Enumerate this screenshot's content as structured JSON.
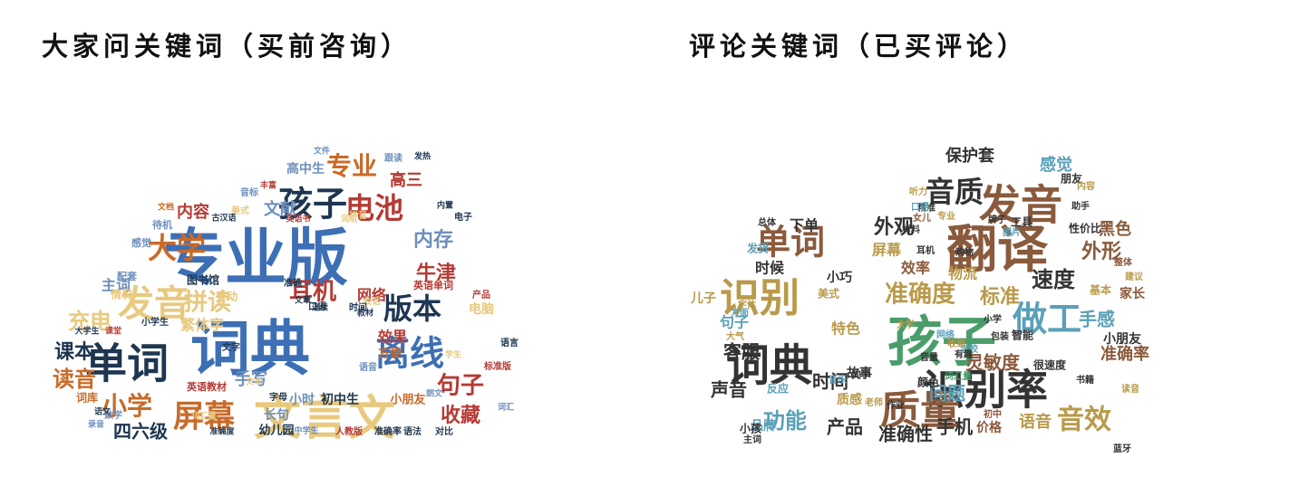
{
  "palette": [
    "#3d6fb5",
    "#c96a28",
    "#e8c97e",
    "#1e3650",
    "#b53a33",
    "#6e8fbd",
    "#8a5a3c",
    "#4a9d6a",
    "#9a3a4a",
    "#b99a4a",
    "#5aa0b8"
  ],
  "panels": [
    {
      "title": "大家问关键词（买前咨询）",
      "words": [
        {
          "text": "专业版",
          "color": "#3d6fb5"
        },
        {
          "text": "词典",
          "color": "#3d6fb5"
        },
        {
          "text": "单词",
          "color": "#1e3650"
        },
        {
          "text": "文言文",
          "color": "#e8c97e"
        },
        {
          "text": "发音",
          "color": "#e8c97e"
        },
        {
          "text": "孩子",
          "color": "#1e3650"
        },
        {
          "text": "离线",
          "color": "#3d6fb5"
        },
        {
          "text": "屏幕",
          "color": "#c96a28"
        },
        {
          "text": "大学",
          "color": "#c96a28"
        },
        {
          "text": "电池",
          "color": "#b53a33"
        },
        {
          "text": "版本",
          "color": "#1e3650"
        },
        {
          "text": "拼读",
          "color": "#e8c97e"
        },
        {
          "text": "小学",
          "color": "#c96a28"
        },
        {
          "text": "课本",
          "color": "#1e3650"
        },
        {
          "text": "耳机",
          "color": "#b53a33"
        },
        {
          "text": "充电",
          "color": "#e8c97e"
        },
        {
          "text": "读音",
          "color": "#c96a28"
        },
        {
          "text": "专业",
          "color": "#c96a28"
        },
        {
          "text": "牛津",
          "color": "#b53a33"
        },
        {
          "text": "句子",
          "color": "#b53a33"
        },
        {
          "text": "内存",
          "color": "#6e8fbd"
        },
        {
          "text": "内容",
          "color": "#b53a33"
        },
        {
          "text": "收藏",
          "color": "#b53a33"
        },
        {
          "text": "四六级",
          "color": "#1e3650"
        },
        {
          "text": "手写",
          "color": "#6e8fbd"
        },
        {
          "text": "文献",
          "color": "#6e8fbd"
        },
        {
          "text": "高三",
          "color": "#b53a33"
        },
        {
          "text": "主词",
          "color": "#6e8fbd"
        },
        {
          "text": "繁体字",
          "color": "#e8c97e"
        },
        {
          "text": "效果",
          "color": "#b53a33"
        },
        {
          "text": "网络",
          "color": "#b53a33"
        },
        {
          "text": "高中生",
          "color": "#6e8fbd"
        },
        {
          "text": "长句",
          "color": "#6e8fbd"
        },
        {
          "text": "小时",
          "color": "#6e8fbd"
        },
        {
          "text": "初中生",
          "color": "#1e3650"
        },
        {
          "text": "电脑",
          "color": "#e8c97e"
        },
        {
          "text": "情况",
          "color": "#e8c97e"
        },
        {
          "text": "图书馆",
          "color": "#1e3650"
        },
        {
          "text": "手动",
          "color": "#e8c97e"
        },
        {
          "text": "英语单词",
          "color": "#b53a33"
        },
        {
          "text": "小朋友",
          "color": "#c96a28"
        },
        {
          "text": "方便",
          "color": "#c96a28"
        },
        {
          "text": "幼儿园",
          "color": "#1e3650"
        },
        {
          "text": "词库",
          "color": "#c96a28"
        },
        {
          "text": "英语教材",
          "color": "#b53a33"
        },
        {
          "text": "配套",
          "color": "#6e8fbd"
        },
        {
          "text": "感觉",
          "color": "#6e8fbd"
        },
        {
          "text": "待机",
          "color": "#6e8fbd"
        },
        {
          "text": "跟读",
          "color": "#6e8fbd"
        },
        {
          "text": "产品",
          "color": "#b53a33"
        },
        {
          "text": "语言",
          "color": "#1e3650"
        },
        {
          "text": "小学生",
          "color": "#1e3650"
        },
        {
          "text": "数学",
          "color": "#6e8fbd"
        },
        {
          "text": "字母",
          "color": "#1e3650"
        },
        {
          "text": "文字",
          "color": "#1e3650"
        },
        {
          "text": "音标",
          "color": "#6e8fbd"
        },
        {
          "text": "拼音",
          "color": "#e8c97e"
        },
        {
          "text": "语音",
          "color": "#6e8fbd"
        },
        {
          "text": "会话",
          "color": "#e8c97e"
        },
        {
          "text": "时间",
          "color": "#1e3650"
        },
        {
          "text": "口语",
          "color": "#1e3650"
        },
        {
          "text": "美式",
          "color": "#e8c97e"
        },
        {
          "text": "准确",
          "color": "#1e3650"
        },
        {
          "text": "电子",
          "color": "#1e3650"
        },
        {
          "text": "语法",
          "color": "#1e3650"
        },
        {
          "text": "对比",
          "color": "#1e3650"
        },
        {
          "text": "标准版",
          "color": "#b53a33"
        },
        {
          "text": "准确率",
          "color": "#1e3650"
        },
        {
          "text": "人教版",
          "color": "#b53a33"
        },
        {
          "text": "中学生",
          "color": "#6e8fbd"
        },
        {
          "text": "准确度",
          "color": "#1e3650"
        },
        {
          "text": "词汇量",
          "color": "#e8c97e"
        },
        {
          "text": "录音",
          "color": "#6e8fbd"
        },
        {
          "text": "文本",
          "color": "#e8c97e"
        },
        {
          "text": "古汉语",
          "color": "#1e3650"
        },
        {
          "text": "英语书",
          "color": "#b53a33"
        },
        {
          "text": "词组",
          "color": "#e8c97e"
        },
        {
          "text": "教材",
          "color": "#1e3650"
        },
        {
          "text": "文档",
          "color": "#c96a28"
        },
        {
          "text": "文件",
          "color": "#6e8fbd"
        },
        {
          "text": "发热",
          "color": "#1e3650"
        },
        {
          "text": "内置",
          "color": "#1e3650"
        },
        {
          "text": "丰富",
          "color": "#b53a33"
        },
        {
          "text": "连续",
          "color": "#1e3650"
        },
        {
          "text": "文章",
          "color": "#1e3650"
        },
        {
          "text": "词汇",
          "color": "#6e8fbd"
        },
        {
          "text": "语文",
          "color": "#1e3650"
        },
        {
          "text": "课堂",
          "color": "#b53a33"
        },
        {
          "text": "朗文",
          "color": "#6e8fbd"
        },
        {
          "text": "学生",
          "color": "#e8c97e"
        },
        {
          "text": "大学生",
          "color": "#1e3650"
        }
      ]
    },
    {
      "title": "评论关键词（已买评论）",
      "words": [
        {
          "text": "翻译",
          "color": "#8a5a3c"
        },
        {
          "text": "孩子",
          "color": "#4a9d6a"
        },
        {
          "text": "词典",
          "color": "#333333"
        },
        {
          "text": "识别率",
          "color": "#333333"
        },
        {
          "text": "发音",
          "color": "#8a5a3c"
        },
        {
          "text": "质量",
          "color": "#8a5a3c"
        },
        {
          "text": "识别",
          "color": "#b99a4a"
        },
        {
          "text": "单词",
          "color": "#8a5a3c"
        },
        {
          "text": "做工",
          "color": "#5aa0b8"
        },
        {
          "text": "音质",
          "color": "#333333"
        },
        {
          "text": "音效",
          "color": "#b99a4a"
        },
        {
          "text": "准确度",
          "color": "#b99a4a"
        },
        {
          "text": "功能",
          "color": "#5aa0b8"
        },
        {
          "text": "速度",
          "color": "#333333"
        },
        {
          "text": "外形",
          "color": "#8a5a3c"
        },
        {
          "text": "外观",
          "color": "#333333"
        },
        {
          "text": "标准",
          "color": "#b99a4a"
        },
        {
          "text": "问题",
          "color": "#5aa0b8"
        },
        {
          "text": "时间",
          "color": "#333333"
        },
        {
          "text": "准确性",
          "color": "#333333"
        },
        {
          "text": "灵敏度",
          "color": "#8a5a3c"
        },
        {
          "text": "手感",
          "color": "#5aa0b8"
        },
        {
          "text": "准确率",
          "color": "#8a5a3c"
        },
        {
          "text": "感觉",
          "color": "#5aa0b8"
        },
        {
          "text": "客服",
          "color": "#333333"
        },
        {
          "text": "声音",
          "color": "#333333"
        },
        {
          "text": "产品",
          "color": "#333333"
        },
        {
          "text": "手机",
          "color": "#333333"
        },
        {
          "text": "语音",
          "color": "#b99a4a"
        },
        {
          "text": "保护套",
          "color": "#333333"
        },
        {
          "text": "黑色",
          "color": "#8a5a3c"
        },
        {
          "text": "屏幕",
          "color": "#b99a4a"
        },
        {
          "text": "效率",
          "color": "#8a5a3c"
        },
        {
          "text": "物流",
          "color": "#b99a4a"
        },
        {
          "text": "特色",
          "color": "#b99a4a"
        },
        {
          "text": "句子",
          "color": "#5aa0b8"
        },
        {
          "text": "下单",
          "color": "#333333"
        },
        {
          "text": "时候",
          "color": "#333333"
        },
        {
          "text": "质感",
          "color": "#b99a4a"
        },
        {
          "text": "故事",
          "color": "#333333"
        },
        {
          "text": "小朋友",
          "color": "#333333"
        },
        {
          "text": "家长",
          "color": "#8a5a3c"
        },
        {
          "text": "品牌",
          "color": "#5aa0b8"
        },
        {
          "text": "儿子",
          "color": "#b99a4a"
        },
        {
          "text": "价格",
          "color": "#8a5a3c"
        },
        {
          "text": "小巧",
          "color": "#333333"
        },
        {
          "text": "很速度",
          "color": "#333333"
        },
        {
          "text": "美式",
          "color": "#b99a4a"
        },
        {
          "text": "朋友",
          "color": "#333333"
        },
        {
          "text": "性价比",
          "color": "#333333"
        },
        {
          "text": "工具",
          "color": "#333333"
        },
        {
          "text": "基本",
          "color": "#b99a4a"
        },
        {
          "text": "反应",
          "color": "#5aa0b8"
        },
        {
          "text": "小孩",
          "color": "#333333"
        },
        {
          "text": "颜色",
          "color": "#333333"
        },
        {
          "text": "智能",
          "color": "#333333"
        },
        {
          "text": "购物",
          "color": "#333333"
        },
        {
          "text": "耳机",
          "color": "#333333"
        },
        {
          "text": "助手",
          "color": "#333333"
        },
        {
          "text": "女儿",
          "color": "#8a5a3c"
        },
        {
          "text": "发货",
          "color": "#5aa0b8"
        },
        {
          "text": "精准",
          "color": "#333333"
        },
        {
          "text": "大学",
          "color": "#b99a4a"
        },
        {
          "text": "作业",
          "color": "#333333"
        },
        {
          "text": "主词",
          "color": "#333333"
        },
        {
          "text": "读音",
          "color": "#b99a4a"
        },
        {
          "text": "总体",
          "color": "#333333"
        },
        {
          "text": "小学",
          "color": "#333333"
        },
        {
          "text": "网络",
          "color": "#5aa0b8"
        },
        {
          "text": "专业",
          "color": "#b99a4a"
        },
        {
          "text": "牌子",
          "color": "#333333"
        },
        {
          "text": "内容",
          "color": "#b99a4a"
        },
        {
          "text": "口语",
          "color": "#5aa0b8"
        },
        {
          "text": "听力",
          "color": "#b99a4a"
        },
        {
          "text": "词汇量",
          "color": "#4a9d6a"
        },
        {
          "text": "初中",
          "color": "#8a5a3c"
        },
        {
          "text": "书籍",
          "color": "#333333"
        },
        {
          "text": "音量",
          "color": "#333333"
        },
        {
          "text": "老师",
          "color": "#b99a4a"
        },
        {
          "text": "学校",
          "color": "#5aa0b8"
        },
        {
          "text": "包装",
          "color": "#333333"
        },
        {
          "text": "整体",
          "color": "#8a5a3c"
        },
        {
          "text": "大气",
          "color": "#b99a4a"
        },
        {
          "text": "方面",
          "color": "#5aa0b8"
        },
        {
          "text": "同学",
          "color": "#333333"
        },
        {
          "text": "收到",
          "color": "#b99a4a"
        },
        {
          "text": "蓝牙",
          "color": "#333333"
        },
        {
          "text": "音乐",
          "color": "#5aa0b8"
        },
        {
          "text": "字体",
          "color": "#b99a4a"
        },
        {
          "text": "材料",
          "color": "#333333"
        },
        {
          "text": "建议",
          "color": "#b99a4a"
        },
        {
          "text": "有趣",
          "color": "#333333"
        },
        {
          "text": "图片",
          "color": "#5aa0b8"
        }
      ]
    }
  ]
}
